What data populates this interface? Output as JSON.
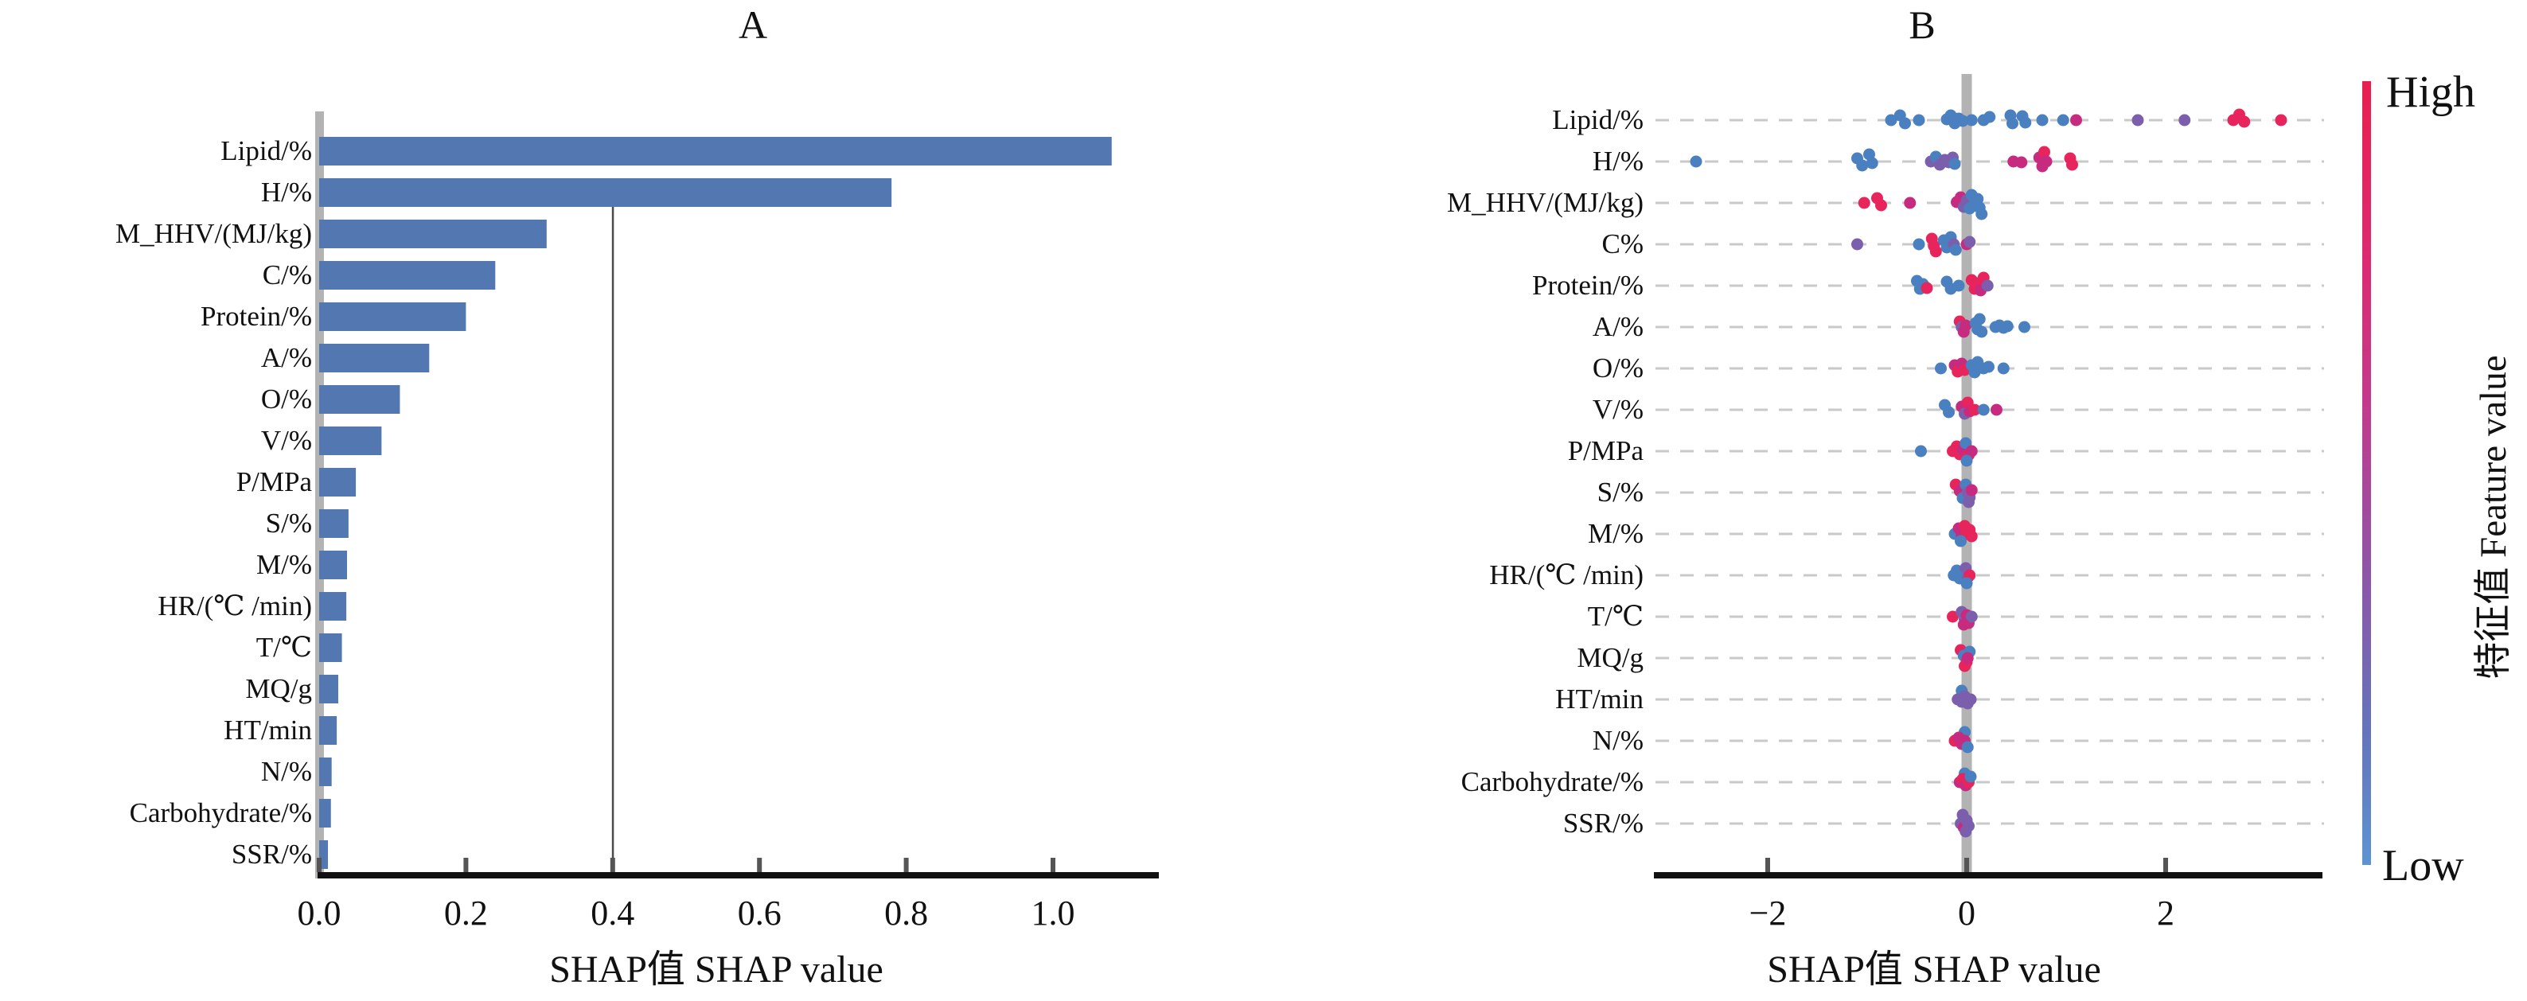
{
  "figure": {
    "panel_a_label": "A",
    "panel_b_label": "B"
  },
  "colorbar": {
    "high_label": "High",
    "low_label": "Low",
    "axis_label": "特征值 Feature value",
    "top_color": "#e81f4f",
    "bottom_color": "#5c94d1"
  },
  "chart_data": [
    {
      "id": "panel-a",
      "type": "bar",
      "orientation": "horizontal",
      "title": "A",
      "xlabel": "SHAP值 SHAP value",
      "ylabel": "",
      "xlim": [
        0.0,
        1.14
      ],
      "xticks": [
        0.0,
        0.2,
        0.4,
        0.6,
        0.8,
        1.0
      ],
      "xtick_labels": [
        "0.0",
        "0.2",
        "0.4",
        "0.6",
        "0.8",
        "1.0"
      ],
      "reference_line_x": 0.4,
      "grid": false,
      "bar_color": "#5377b0",
      "baseline_color": "#b3b3b3",
      "categories": [
        "Lipid/%",
        "H/%",
        "M_HHV/(MJ/kg)",
        "C/%",
        "Protein/%",
        "A/%",
        "O/%",
        "V/%",
        "P/MPa",
        "S/%",
        "M/%",
        "HR/(℃ /min)",
        "T/℃",
        "MQ/g",
        "HT/min",
        "N/%",
        "Carbohydrate/%",
        "SSR/%"
      ],
      "values": [
        1.08,
        0.78,
        0.31,
        0.24,
        0.2,
        0.15,
        0.11,
        0.085,
        0.05,
        0.04,
        0.038,
        0.037,
        0.031,
        0.026,
        0.024,
        0.017,
        0.016,
        0.012
      ]
    },
    {
      "id": "panel-b",
      "type": "scatter",
      "subtype": "shap-beeswarm",
      "title": "B",
      "xlabel": "SHAP值 SHAP value",
      "xlim": [
        -3.1,
        3.5
      ],
      "xticks": [
        -2,
        0,
        2
      ],
      "xtick_labels": [
        "−2",
        "0",
        "2"
      ],
      "grid": true,
      "gridline_color": "#c9c9c9",
      "zero_line_color": "#b3b3b3",
      "categories": [
        "Lipid/%",
        "H/%",
        "M_HHV/(MJ/kg)",
        "C%",
        "Protein/%",
        "A/%",
        "O/%",
        "V/%",
        "P/MPa",
        "S/%",
        "M/%",
        "HR/(℃ /min)",
        "T/℃",
        "MQ/g",
        "HT/min",
        "N/%",
        "Carbohydrate/%",
        "SSR/%"
      ],
      "point_colors": {
        "b": "#4a7fc0",
        "m": "#c72b7f",
        "p": "#7b5fad",
        "r": "#e8245c"
      },
      "series": [
        {
          "feature": "Lipid/%",
          "points": [
            [
              -0.76,
              0,
              "b"
            ],
            [
              -0.67,
              -6,
              "b"
            ],
            [
              -0.62,
              4,
              "b"
            ],
            [
              -0.48,
              0,
              "b"
            ],
            [
              -0.2,
              -1,
              "b"
            ],
            [
              -0.16,
              -6,
              "b"
            ],
            [
              -0.12,
              4,
              "b"
            ],
            [
              -0.08,
              -2,
              "b"
            ],
            [
              -0.04,
              1,
              "b"
            ],
            [
              0.05,
              0,
              "b"
            ],
            [
              0.17,
              0,
              "b"
            ],
            [
              0.23,
              -4,
              "b"
            ],
            [
              0.44,
              -6,
              "b"
            ],
            [
              0.46,
              4,
              "b"
            ],
            [
              0.56,
              -5,
              "b"
            ],
            [
              0.59,
              3,
              "b"
            ],
            [
              0.76,
              0,
              "b"
            ],
            [
              0.97,
              0,
              "b"
            ],
            [
              1.1,
              0,
              "m"
            ],
            [
              1.72,
              0,
              "p"
            ],
            [
              2.19,
              0,
              "p"
            ],
            [
              2.68,
              0,
              "r"
            ],
            [
              2.74,
              -7,
              "r"
            ],
            [
              2.79,
              2,
              "r"
            ],
            [
              3.16,
              0,
              "r"
            ]
          ]
        },
        {
          "feature": "H/%",
          "points": [
            [
              -2.72,
              0,
              "b"
            ],
            [
              -1.1,
              -4,
              "b"
            ],
            [
              -1.05,
              5,
              "b"
            ],
            [
              -0.98,
              -9,
              "b"
            ],
            [
              -0.95,
              2,
              "b"
            ],
            [
              -0.36,
              0,
              "p"
            ],
            [
              -0.31,
              -6,
              "b"
            ],
            [
              -0.27,
              4,
              "p"
            ],
            [
              -0.22,
              -2,
              "p"
            ],
            [
              -0.18,
              1,
              "p"
            ],
            [
              -0.14,
              -5,
              "p"
            ],
            [
              -0.12,
              3,
              "b"
            ],
            [
              0.47,
              0,
              "m"
            ],
            [
              0.55,
              1,
              "m"
            ],
            [
              0.73,
              -5,
              "m"
            ],
            [
              0.76,
              6,
              "m"
            ],
            [
              0.78,
              -12,
              "r"
            ],
            [
              0.8,
              0,
              "m"
            ],
            [
              1.04,
              -4,
              "r"
            ],
            [
              1.06,
              4,
              "r"
            ]
          ]
        },
        {
          "feature": "M_HHV/(MJ/kg)",
          "points": [
            [
              -1.03,
              0,
              "r"
            ],
            [
              -0.9,
              -6,
              "r"
            ],
            [
              -0.86,
              3,
              "r"
            ],
            [
              -0.57,
              0,
              "m"
            ],
            [
              -0.1,
              -1,
              "m"
            ],
            [
              -0.06,
              -7,
              "m"
            ],
            [
              -0.03,
              5,
              "p"
            ],
            [
              0.0,
              -3,
              "p"
            ],
            [
              0.03,
              7,
              "b"
            ],
            [
              0.05,
              -10,
              "b"
            ],
            [
              0.08,
              1,
              "b"
            ],
            [
              0.11,
              -5,
              "b"
            ],
            [
              0.13,
              6,
              "b"
            ],
            [
              0.15,
              14,
              "b"
            ]
          ]
        },
        {
          "feature": "C%",
          "points": [
            [
              -1.1,
              0,
              "p"
            ],
            [
              -0.48,
              0,
              "b"
            ],
            [
              -0.35,
              -7,
              "r"
            ],
            [
              -0.33,
              2,
              "r"
            ],
            [
              -0.31,
              9,
              "r"
            ],
            [
              -0.23,
              -5,
              "b"
            ],
            [
              -0.2,
              4,
              "b"
            ],
            [
              -0.16,
              -9,
              "b"
            ],
            [
              -0.13,
              0,
              "p"
            ],
            [
              -0.11,
              7,
              "b"
            ],
            [
              0.0,
              0,
              "m"
            ],
            [
              0.03,
              -3,
              "p"
            ]
          ]
        },
        {
          "feature": "Protein/%",
          "points": [
            [
              -0.5,
              -6,
              "b"
            ],
            [
              -0.47,
              4,
              "b"
            ],
            [
              -0.44,
              -2,
              "b"
            ],
            [
              -0.4,
              3,
              "r"
            ],
            [
              -0.2,
              -5,
              "b"
            ],
            [
              -0.16,
              4,
              "b"
            ],
            [
              -0.08,
              0,
              "b"
            ],
            [
              0.05,
              -7,
              "r"
            ],
            [
              0.08,
              4,
              "r"
            ],
            [
              0.11,
              -3,
              "r"
            ],
            [
              0.14,
              6,
              "m"
            ],
            [
              0.17,
              -10,
              "r"
            ],
            [
              0.21,
              0,
              "p"
            ]
          ]
        },
        {
          "feature": "A/%",
          "points": [
            [
              -0.07,
              -7,
              "r"
            ],
            [
              -0.05,
              0,
              "p"
            ],
            [
              -0.03,
              6,
              "m"
            ],
            [
              -0.01,
              -2,
              "m"
            ],
            [
              0.09,
              -5,
              "b"
            ],
            [
              0.11,
              3,
              "b"
            ],
            [
              0.13,
              -10,
              "b"
            ],
            [
              0.15,
              6,
              "b"
            ],
            [
              0.29,
              0,
              "b"
            ],
            [
              0.33,
              -2,
              "b"
            ],
            [
              0.37,
              1,
              "b"
            ],
            [
              0.41,
              -1,
              "b"
            ],
            [
              0.58,
              0,
              "b"
            ]
          ]
        },
        {
          "feature": "O/%",
          "points": [
            [
              -0.26,
              0,
              "b"
            ],
            [
              -0.12,
              -4,
              "m"
            ],
            [
              -0.09,
              4,
              "r"
            ],
            [
              -0.05,
              -6,
              "m"
            ],
            [
              -0.02,
              2,
              "r"
            ],
            [
              0.05,
              -4,
              "b"
            ],
            [
              0.08,
              5,
              "b"
            ],
            [
              0.11,
              -8,
              "b"
            ],
            [
              0.17,
              0,
              "b"
            ],
            [
              0.22,
              -2,
              "b"
            ],
            [
              0.37,
              0,
              "b"
            ]
          ]
        },
        {
          "feature": "V/%",
          "points": [
            [
              -0.22,
              -6,
              "b"
            ],
            [
              -0.18,
              3,
              "b"
            ],
            [
              -0.05,
              -4,
              "m"
            ],
            [
              -0.02,
              5,
              "p"
            ],
            [
              0.01,
              -9,
              "r"
            ],
            [
              0.03,
              2,
              "m"
            ],
            [
              0.08,
              0,
              "r"
            ],
            [
              0.17,
              0,
              "b"
            ],
            [
              0.3,
              0,
              "m"
            ]
          ]
        },
        {
          "feature": "P/MPa",
          "points": [
            [
              -0.46,
              0,
              "b"
            ],
            [
              -0.14,
              0,
              "r"
            ],
            [
              -0.1,
              -6,
              "r"
            ],
            [
              -0.07,
              4,
              "r"
            ],
            [
              -0.04,
              -2,
              "m"
            ],
            [
              -0.01,
              -10,
              "b"
            ],
            [
              0.02,
              5,
              "r"
            ],
            [
              0.05,
              0,
              "m"
            ],
            [
              0.0,
              12,
              "b"
            ]
          ]
        },
        {
          "feature": "S/%",
          "points": [
            [
              -0.11,
              -10,
              "r"
            ],
            [
              -0.07,
              -2,
              "m"
            ],
            [
              -0.04,
              7,
              "b"
            ],
            [
              -0.01,
              -10,
              "b"
            ],
            [
              0.01,
              0,
              "p"
            ],
            [
              0.03,
              6,
              "p"
            ],
            [
              0.05,
              -3,
              "m"
            ],
            [
              0.02,
              12,
              "p"
            ]
          ]
        },
        {
          "feature": "M/%",
          "points": [
            [
              -0.12,
              0,
              "b"
            ],
            [
              -0.08,
              -7,
              "m"
            ],
            [
              -0.05,
              2,
              "m"
            ],
            [
              -0.02,
              -10,
              "r"
            ],
            [
              0.0,
              0,
              "r"
            ],
            [
              0.03,
              -5,
              "r"
            ],
            [
              0.05,
              3,
              "r"
            ],
            [
              -0.06,
              9,
              "b"
            ]
          ]
        },
        {
          "feature": "HR/(℃ /min)",
          "points": [
            [
              -0.13,
              0,
              "b"
            ],
            [
              -0.1,
              -6,
              "b"
            ],
            [
              -0.07,
              4,
              "b"
            ],
            [
              -0.04,
              -2,
              "b"
            ],
            [
              -0.01,
              -9,
              "p"
            ],
            [
              0.01,
              3,
              "p"
            ],
            [
              0.03,
              0,
              "r"
            ],
            [
              0.0,
              10,
              "b"
            ]
          ]
        },
        {
          "feature": "T/℃",
          "points": [
            [
              -0.14,
              0,
              "r"
            ],
            [
              -0.05,
              -6,
              "p"
            ],
            [
              -0.02,
              3,
              "p"
            ],
            [
              0.0,
              -2,
              "m"
            ],
            [
              0.02,
              8,
              "m"
            ],
            [
              0.05,
              0,
              "p"
            ],
            [
              -0.03,
              10,
              "m"
            ]
          ]
        },
        {
          "feature": "MQ/g",
          "points": [
            [
              -0.06,
              -10,
              "r"
            ],
            [
              -0.03,
              -3,
              "b"
            ],
            [
              0.0,
              5,
              "r"
            ],
            [
              -0.02,
              10,
              "r"
            ],
            [
              0.03,
              -8,
              "b"
            ],
            [
              0.01,
              0,
              "m"
            ]
          ]
        },
        {
          "feature": "HT/min",
          "points": [
            [
              -0.05,
              -11,
              "b"
            ],
            [
              -0.09,
              0,
              "p"
            ],
            [
              -0.05,
              3,
              "p"
            ],
            [
              -0.02,
              -4,
              "p"
            ],
            [
              0.01,
              5,
              "p"
            ],
            [
              0.04,
              0,
              "p"
            ]
          ]
        },
        {
          "feature": "N/%",
          "points": [
            [
              -0.02,
              -11,
              "b"
            ],
            [
              -0.12,
              0,
              "r"
            ],
            [
              -0.08,
              -4,
              "m"
            ],
            [
              -0.05,
              4,
              "m"
            ],
            [
              -0.02,
              0,
              "m"
            ],
            [
              0.01,
              8,
              "b"
            ]
          ]
        },
        {
          "feature": "Carbohydrate/%",
          "points": [
            [
              -0.02,
              -11,
              "b"
            ],
            [
              -0.07,
              0,
              "m"
            ],
            [
              -0.04,
              -4,
              "r"
            ],
            [
              -0.01,
              4,
              "m"
            ],
            [
              0.02,
              0,
              "r"
            ],
            [
              0.04,
              -7,
              "b"
            ]
          ]
        },
        {
          "feature": "SSR/%",
          "points": [
            [
              -0.04,
              -11,
              "p"
            ],
            [
              -0.06,
              0,
              "p"
            ],
            [
              -0.03,
              5,
              "m"
            ],
            [
              0.0,
              -4,
              "p"
            ],
            [
              0.02,
              3,
              "p"
            ],
            [
              -0.01,
              10,
              "p"
            ]
          ]
        }
      ],
      "colorbar": {
        "high_label": "High",
        "low_label": "Low",
        "axis_label": "特征值 Feature value"
      }
    }
  ]
}
